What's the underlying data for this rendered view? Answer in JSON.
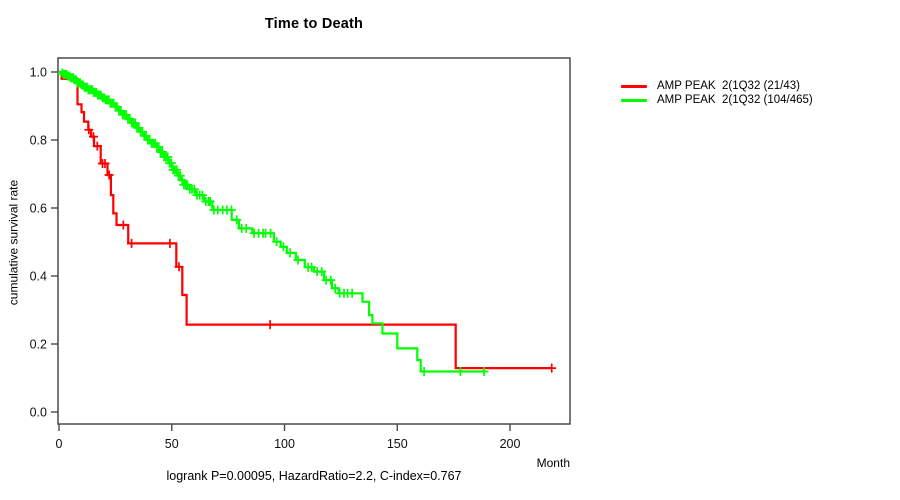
{
  "chart_data": {
    "type": "line",
    "subtype": "kaplan_meier_step",
    "title": "Time to Death",
    "xlabel": "Month",
    "ylabel": "cumulative survival rate",
    "footnote": "logrank P=0.00095, HazardRatio=2.2, C-index=0.767",
    "x_ticks": [
      "0",
      "50",
      "100",
      "150",
      "200"
    ],
    "x_tick_values": [
      0,
      50,
      100,
      150,
      200
    ],
    "y_ticks": [
      "0.0",
      "0.2",
      "0.4",
      "0.6",
      "0.8",
      "1.0"
    ],
    "y_tick_values": [
      0,
      0.2,
      0.4,
      0.6,
      0.8,
      1.0
    ],
    "xlim": [
      0,
      226
    ],
    "ylim": [
      0,
      1.0
    ],
    "grid": false,
    "legend_position": "right-outside",
    "axis_color": "#4a4a4a",
    "series": [
      {
        "name": "AMP PEAK  2(1Q32 (21/43)",
        "color": "#ff0000",
        "points": [
          [
            0,
            1.0
          ],
          [
            1.2,
            0.98
          ],
          [
            8.2,
            0.905
          ],
          [
            10,
            0.882
          ],
          [
            11.1,
            0.854
          ],
          [
            13,
            0.83
          ],
          [
            14.2,
            0.81
          ],
          [
            15.5,
            0.782
          ],
          [
            18.5,
            0.731
          ],
          [
            21.5,
            0.697
          ],
          [
            23,
            0.638
          ],
          [
            24.1,
            0.584
          ],
          [
            25.5,
            0.55
          ],
          [
            30.7,
            0.496
          ],
          [
            52,
            0.427
          ],
          [
            54.7,
            0.344
          ],
          [
            56.6,
            0.257
          ],
          [
            175.9,
            0.129
          ]
        ],
        "censor_times": [
          13.2,
          15.3,
          17.0,
          19.3,
          20.4,
          22.2,
          28.5,
          32.2,
          49.2,
          53.2,
          93.6,
          218.5
        ],
        "end_time": 218.5
      },
      {
        "name": "AMP PEAK  2(1Q32 (104/465)",
        "color": "#00ff00",
        "points": [
          [
            0,
            1.0
          ],
          [
            1,
            0.997
          ],
          [
            2,
            0.993
          ],
          [
            3.5,
            0.988
          ],
          [
            5,
            0.983
          ],
          [
            6.5,
            0.977
          ],
          [
            8,
            0.968
          ],
          [
            9.5,
            0.962
          ],
          [
            11,
            0.955
          ],
          [
            13,
            0.948
          ],
          [
            15,
            0.94
          ],
          [
            17,
            0.932
          ],
          [
            19,
            0.924
          ],
          [
            20.7,
            0.918
          ],
          [
            22.5,
            0.908
          ],
          [
            24.5,
            0.898
          ],
          [
            26.5,
            0.886
          ],
          [
            28.1,
            0.874
          ],
          [
            30,
            0.862
          ],
          [
            32,
            0.85
          ],
          [
            34,
            0.836
          ],
          [
            35.5,
            0.824
          ],
          [
            37.5,
            0.812
          ],
          [
            39,
            0.8
          ],
          [
            41,
            0.79
          ],
          [
            42.9,
            0.78
          ],
          [
            44.5,
            0.765
          ],
          [
            46.5,
            0.75
          ],
          [
            48.5,
            0.732
          ],
          [
            50.3,
            0.712
          ],
          [
            52.5,
            0.695
          ],
          [
            54,
            0.682
          ],
          [
            55.4,
            0.668
          ],
          [
            58,
            0.655
          ],
          [
            60.6,
            0.638
          ],
          [
            64.3,
            0.619
          ],
          [
            68,
            0.594
          ],
          [
            76.6,
            0.565
          ],
          [
            79.8,
            0.54
          ],
          [
            85.7,
            0.526
          ],
          [
            95.3,
            0.501
          ],
          [
            98.3,
            0.486
          ],
          [
            101,
            0.468
          ],
          [
            105,
            0.447
          ],
          [
            109,
            0.426
          ],
          [
            113,
            0.413
          ],
          [
            117.5,
            0.388
          ],
          [
            121,
            0.364
          ],
          [
            124,
            0.349
          ],
          [
            134.6,
            0.324
          ],
          [
            137.5,
            0.285
          ],
          [
            139,
            0.261
          ],
          [
            143.4,
            0.231
          ],
          [
            150,
            0.187
          ],
          [
            158.9,
            0.153
          ],
          [
            160.4,
            0.119
          ]
        ],
        "censor_times": [
          1.5,
          2.2,
          2.8,
          3.4,
          4,
          4.6,
          5.2,
          5.8,
          6.4,
          7,
          7.6,
          8.2,
          8.8,
          9.4,
          10,
          10.6,
          11.2,
          11.8,
          12.4,
          13,
          13.6,
          14.2,
          14.8,
          15.4,
          16,
          16.6,
          17.2,
          17.9,
          18.6,
          19.3,
          20,
          20.7,
          21.4,
          22.1,
          22.8,
          23.5,
          24.2,
          25,
          25.8,
          26.6,
          27.4,
          28.2,
          29,
          29.8,
          30.6,
          31.4,
          32.2,
          33,
          33.8,
          34.6,
          35.4,
          36.2,
          37,
          37.8,
          38.6,
          39.4,
          40.2,
          41,
          41.8,
          42.6,
          43.4,
          44.2,
          45,
          45.8,
          46.6,
          47.4,
          48.2,
          49,
          49.8,
          50.6,
          51.4,
          52.2,
          53,
          53.8,
          54.6,
          55.4,
          56.2,
          57,
          58,
          59,
          60,
          61.2,
          62.4,
          63.6,
          65.1,
          66.3,
          67,
          68.7,
          70.4,
          72.6,
          74.5,
          76.5,
          78.8,
          81,
          83,
          86.5,
          88.5,
          90.5,
          91.6,
          93.8,
          96.5,
          99.5,
          102.5,
          106,
          110.5,
          112,
          114.5,
          116.5,
          118.5,
          120.5,
          122.5,
          124.5,
          126.4,
          128,
          130,
          161.9,
          178,
          188.5
        ],
        "end_time": 189
      }
    ]
  }
}
